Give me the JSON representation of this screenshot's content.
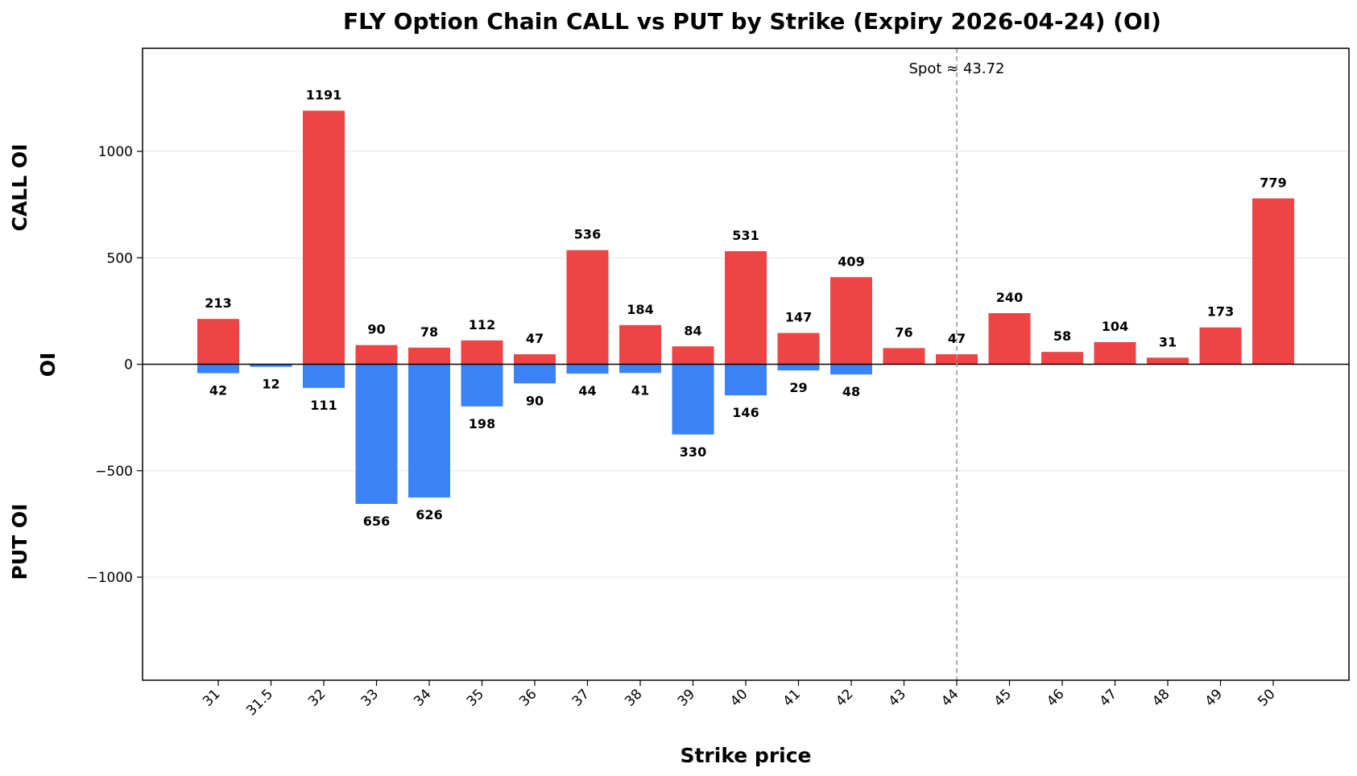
{
  "chart_data": {
    "type": "bar",
    "title": "FLY Option Chain CALL vs PUT by Strike (Expiry 2026-04-24) (OI)",
    "xlabel": "Strike price",
    "ylabel": "OI",
    "ylabel_top": "CALL OI",
    "ylabel_bottom": "PUT OI",
    "ylim": [
      -1483,
      1483
    ],
    "yticks": [
      -1000,
      -500,
      0,
      500,
      1000
    ],
    "ytick_labels": [
      "−1000",
      "−500",
      "0",
      "500",
      "1000"
    ],
    "grid": true,
    "categories": [
      "31",
      "31.5",
      "32",
      "33",
      "34",
      "35",
      "36",
      "37",
      "38",
      "39",
      "40",
      "41",
      "42",
      "43",
      "44",
      "45",
      "46",
      "47",
      "48",
      "49",
      "50"
    ],
    "series": [
      {
        "key": "call",
        "color": "#ef4444",
        "values": [
          213,
          null,
          1191,
          90,
          78,
          112,
          47,
          536,
          184,
          84,
          531,
          147,
          409,
          76,
          47,
          240,
          58,
          104,
          31,
          173,
          779
        ]
      },
      {
        "key": "put",
        "color": "#3b82f6",
        "values": [
          42,
          12,
          111,
          656,
          626,
          198,
          90,
          44,
          41,
          330,
          146,
          29,
          48,
          null,
          null,
          null,
          null,
          null,
          null,
          null,
          null
        ]
      }
    ],
    "spot": {
      "category": "44",
      "label": "Spot ≈ 43.72"
    }
  }
}
